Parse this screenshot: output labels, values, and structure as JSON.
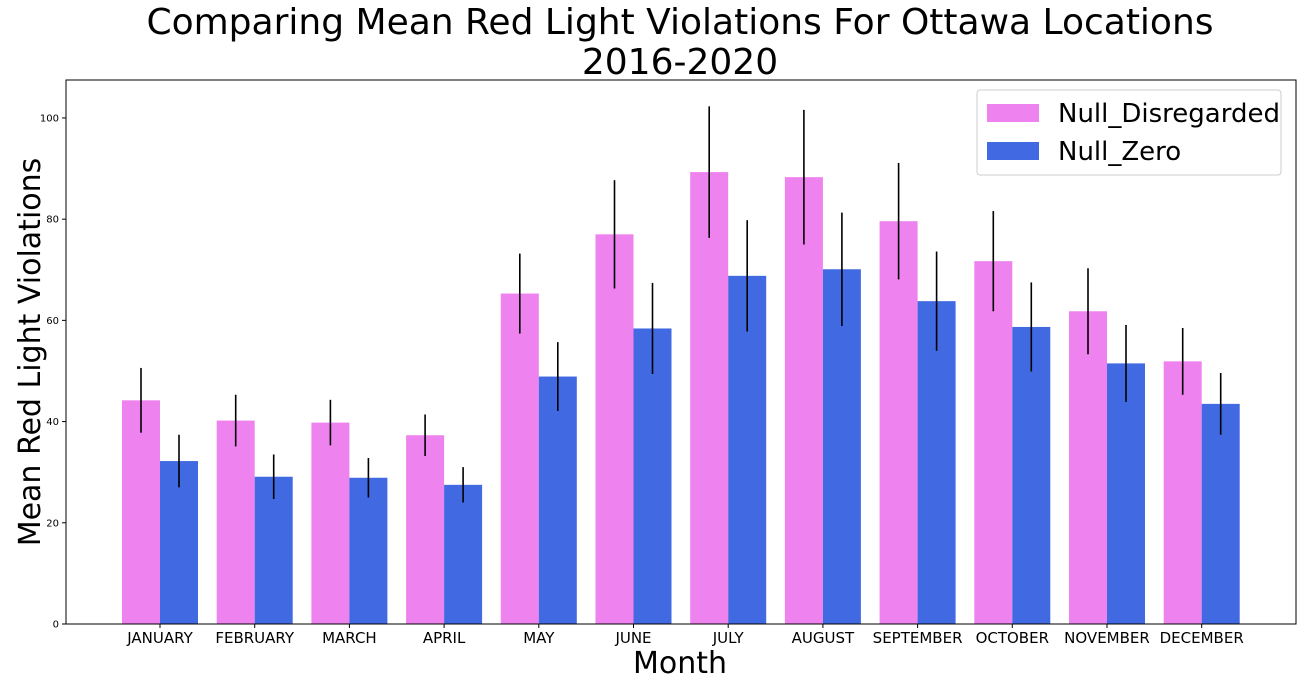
{
  "chart_data": {
    "type": "bar",
    "title_lines": [
      "Comparing Mean Red Light Violations For Ottawa Locations",
      "2016-2020"
    ],
    "xlabel": "Month",
    "ylabel": "Mean Red Light Violations",
    "ylim": [
      0,
      107.5
    ],
    "yticks": [
      0,
      20,
      40,
      60,
      80,
      100
    ],
    "legend_position": "top-right",
    "categories": [
      "JANUARY",
      "FEBRUARY",
      "MARCH",
      "APRIL",
      "MAY",
      "JUNE",
      "JULY",
      "AUGUST",
      "SEPTEMBER",
      "OCTOBER",
      "NOVEMBER",
      "DECEMBER"
    ],
    "series": [
      {
        "name": "Null_Disregarded",
        "color": "#ee82ee",
        "values": [
          44.2,
          40.2,
          39.8,
          37.3,
          65.3,
          77.0,
          89.3,
          88.3,
          79.6,
          71.7,
          61.8,
          51.9
        ],
        "error": [
          6.4,
          5.1,
          4.5,
          4.1,
          7.9,
          10.7,
          13.0,
          13.3,
          11.5,
          9.9,
          8.5,
          6.6
        ]
      },
      {
        "name": "Null_Zero",
        "color": "#4169e1",
        "values": [
          32.2,
          29.1,
          28.9,
          27.5,
          48.9,
          58.4,
          68.8,
          70.1,
          63.8,
          58.7,
          51.5,
          43.5
        ],
        "error": [
          5.2,
          4.4,
          3.9,
          3.5,
          6.8,
          9.0,
          11.0,
          11.2,
          9.8,
          8.8,
          7.6,
          6.1
        ]
      }
    ]
  }
}
